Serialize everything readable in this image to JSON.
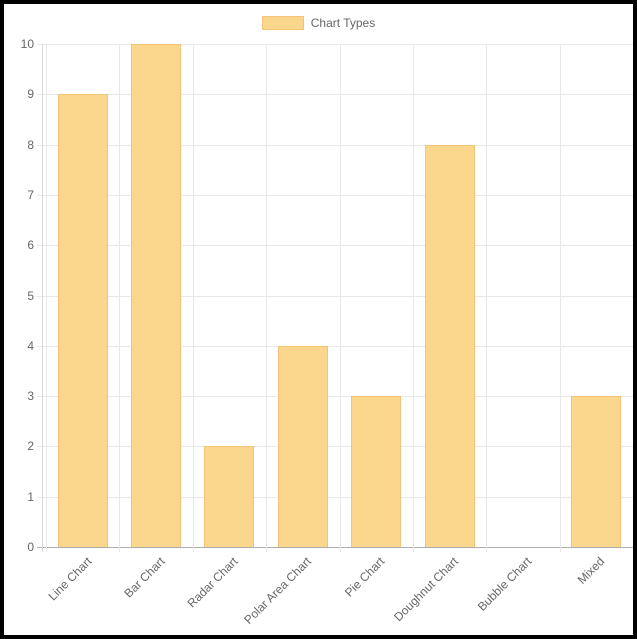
{
  "chart_data": {
    "type": "bar",
    "series_name": "Chart Types",
    "categories": [
      "Line Chart",
      "Bar Chart",
      "Radar Chart",
      "Polar Area Chart",
      "Pie Chart",
      "Doughnut Chart",
      "Bubble Chart",
      "Mixed"
    ],
    "values": [
      9,
      10,
      2,
      4,
      3,
      8,
      0,
      3
    ],
    "title": "",
    "xlabel": "",
    "ylabel": "",
    "ylim": [
      0,
      10
    ],
    "yticks": [
      0,
      1,
      2,
      3,
      4,
      5,
      6,
      7,
      8,
      9,
      10
    ],
    "grid": true,
    "legend_position": "top",
    "colors": {
      "bar_fill": "#FBD78E",
      "bar_border": "#F2C378",
      "grid": "#E8E8E8",
      "zero_line": "#ADADAD",
      "axis_line": "#D8D8D8",
      "tick_text": "#666666",
      "legend_text": "#666666",
      "frame_border": "#000000",
      "background": "#FFFFFF"
    }
  }
}
